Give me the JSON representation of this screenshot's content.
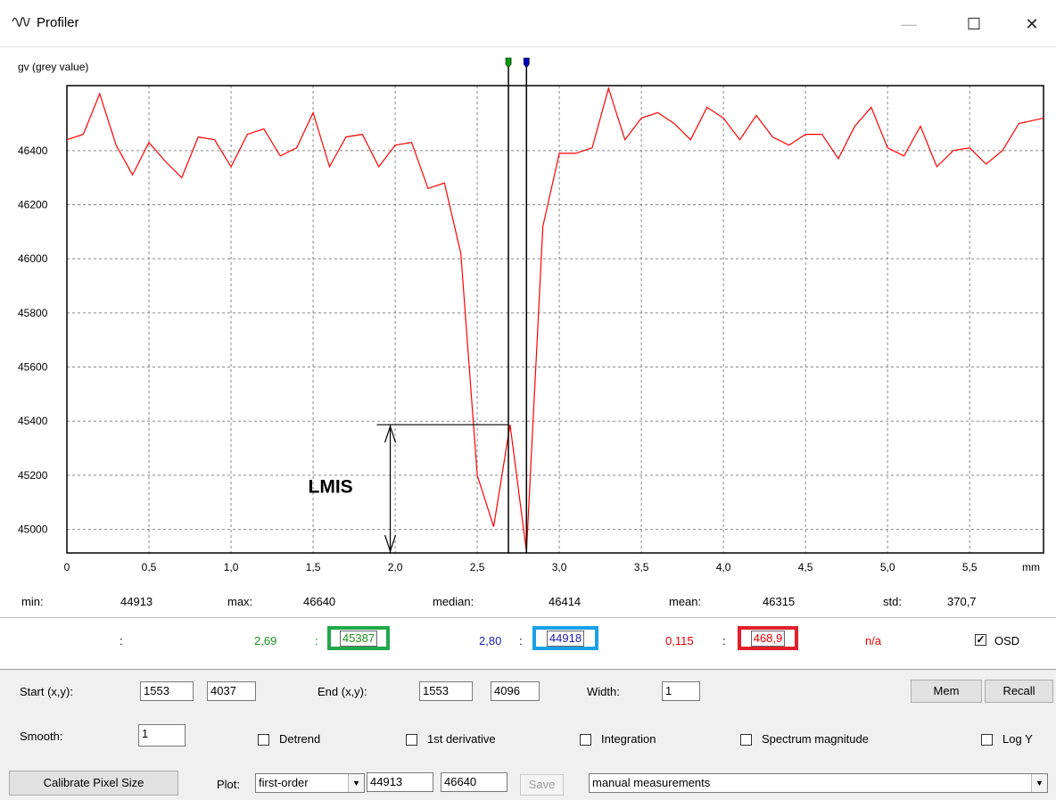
{
  "window": {
    "title": "Profiler",
    "minimize_icon": "minimize-icon",
    "maximize_icon": "maximize-icon",
    "close_icon": "close-icon"
  },
  "chart_data": {
    "type": "line",
    "ylabel": "gv (grey value)",
    "xunit": "mm",
    "xlim": [
      0,
      5.95
    ],
    "ylim": [
      44913,
      46640
    ],
    "xticks": [
      "0",
      "0,5",
      "1,0",
      "1,5",
      "2,0",
      "2,5",
      "3,0",
      "3,5",
      "4,0",
      "4,5",
      "5,0",
      "5,5"
    ],
    "xtick_values": [
      0,
      0.5,
      1.0,
      1.5,
      2.0,
      2.5,
      3.0,
      3.5,
      4.0,
      4.5,
      5.0,
      5.5
    ],
    "yticks": [
      "46400",
      "46200",
      "46000",
      "45800",
      "45600",
      "45400",
      "45200",
      "45000"
    ],
    "ytick_values": [
      46400,
      46200,
      46000,
      45800,
      45600,
      45400,
      45200,
      45000
    ],
    "grid": true,
    "line_color": "#ff0000",
    "series": [
      {
        "x": [
          0,
          0.1,
          0.2,
          0.3,
          0.4,
          0.5,
          0.6,
          0.7,
          0.8,
          0.9,
          1.0,
          1.1,
          1.2,
          1.3,
          1.4,
          1.5,
          1.6,
          1.7,
          1.8,
          1.9,
          2.0,
          2.1,
          2.2,
          2.3,
          2.4,
          2.5,
          2.6,
          2.7,
          2.8,
          2.9,
          3.0,
          3.1,
          3.2,
          3.3,
          3.4,
          3.5,
          3.6,
          3.7,
          3.8,
          3.9,
          4.0,
          4.1,
          4.2,
          4.3,
          4.4,
          4.5,
          4.6,
          4.7,
          4.8,
          4.9,
          5.0,
          5.1,
          5.2,
          5.3,
          5.4,
          5.5,
          5.6,
          5.7,
          5.8,
          5.95
        ],
        "y": [
          46440,
          46460,
          46610,
          46420,
          46310,
          46430,
          46360,
          46300,
          46450,
          46440,
          46340,
          46460,
          46480,
          46380,
          46410,
          46540,
          46340,
          46450,
          46460,
          46340,
          46420,
          46430,
          46260,
          46280,
          46020,
          45200,
          45010,
          45387,
          44918,
          46120,
          46390,
          46390,
          46410,
          46630,
          46440,
          46520,
          46540,
          46500,
          46440,
          46560,
          46520,
          46440,
          46530,
          46450,
          46420,
          46460,
          46460,
          46370,
          46490,
          46560,
          46410,
          46380,
          46490,
          46340,
          46400,
          46410,
          46350,
          46400,
          46500,
          46520
        ]
      }
    ],
    "cursors": [
      {
        "x": 2.69,
        "color": "#00a000"
      },
      {
        "x": 2.8,
        "color": "#0000c0"
      }
    ],
    "annotation": {
      "text": "LMIS",
      "x": 1.97,
      "y_top": 45387,
      "y_bottom": 44918
    }
  },
  "stats": {
    "min_label": "min:",
    "min_value": "44913",
    "max_label": "max:",
    "max_value": "46640",
    "median_label": "median:",
    "median_value": "46414",
    "mean_label": "mean:",
    "mean_value": "46315",
    "std_label": "std:",
    "std_value": "370,7"
  },
  "measurements": {
    "colon": ":",
    "green_pos": "2,69",
    "green_value": "45387",
    "blue_pos": "2,80",
    "blue_value": "44918",
    "red_pos": "0,115",
    "red_value": "468,9",
    "na": "n/a",
    "osd_label": "OSD",
    "green": "#1a8f1a",
    "blue": "#1b1bb0",
    "red": "#e00000",
    "green_box": "#21a84a",
    "blue_box": "#1aa0e6",
    "red_box": "#e0202a"
  },
  "controls": {
    "start_label": "Start (x,y):",
    "start_x": "1553",
    "start_y": "4037",
    "end_label": "End (x,y):",
    "end_x": "1553",
    "end_y": "4096",
    "width_label": "Width:",
    "width_value": "1",
    "mem_label": "Mem",
    "recall_label": "Recall",
    "smooth_label": "Smooth:",
    "smooth_value": "1",
    "detrend_label": "Detrend",
    "derivative_label": "1st derivative",
    "integration_label": "Integration",
    "spectrum_label": "Spectrum magnitude",
    "logy_label": "Log Y",
    "calibrate_label": "Calibrate Pixel Size",
    "plot_label": "Plot:",
    "plot_value": "first-order",
    "plot_min": "44913",
    "plot_max": "46640",
    "save_label": "Save",
    "mode_value": "manual measurements"
  }
}
